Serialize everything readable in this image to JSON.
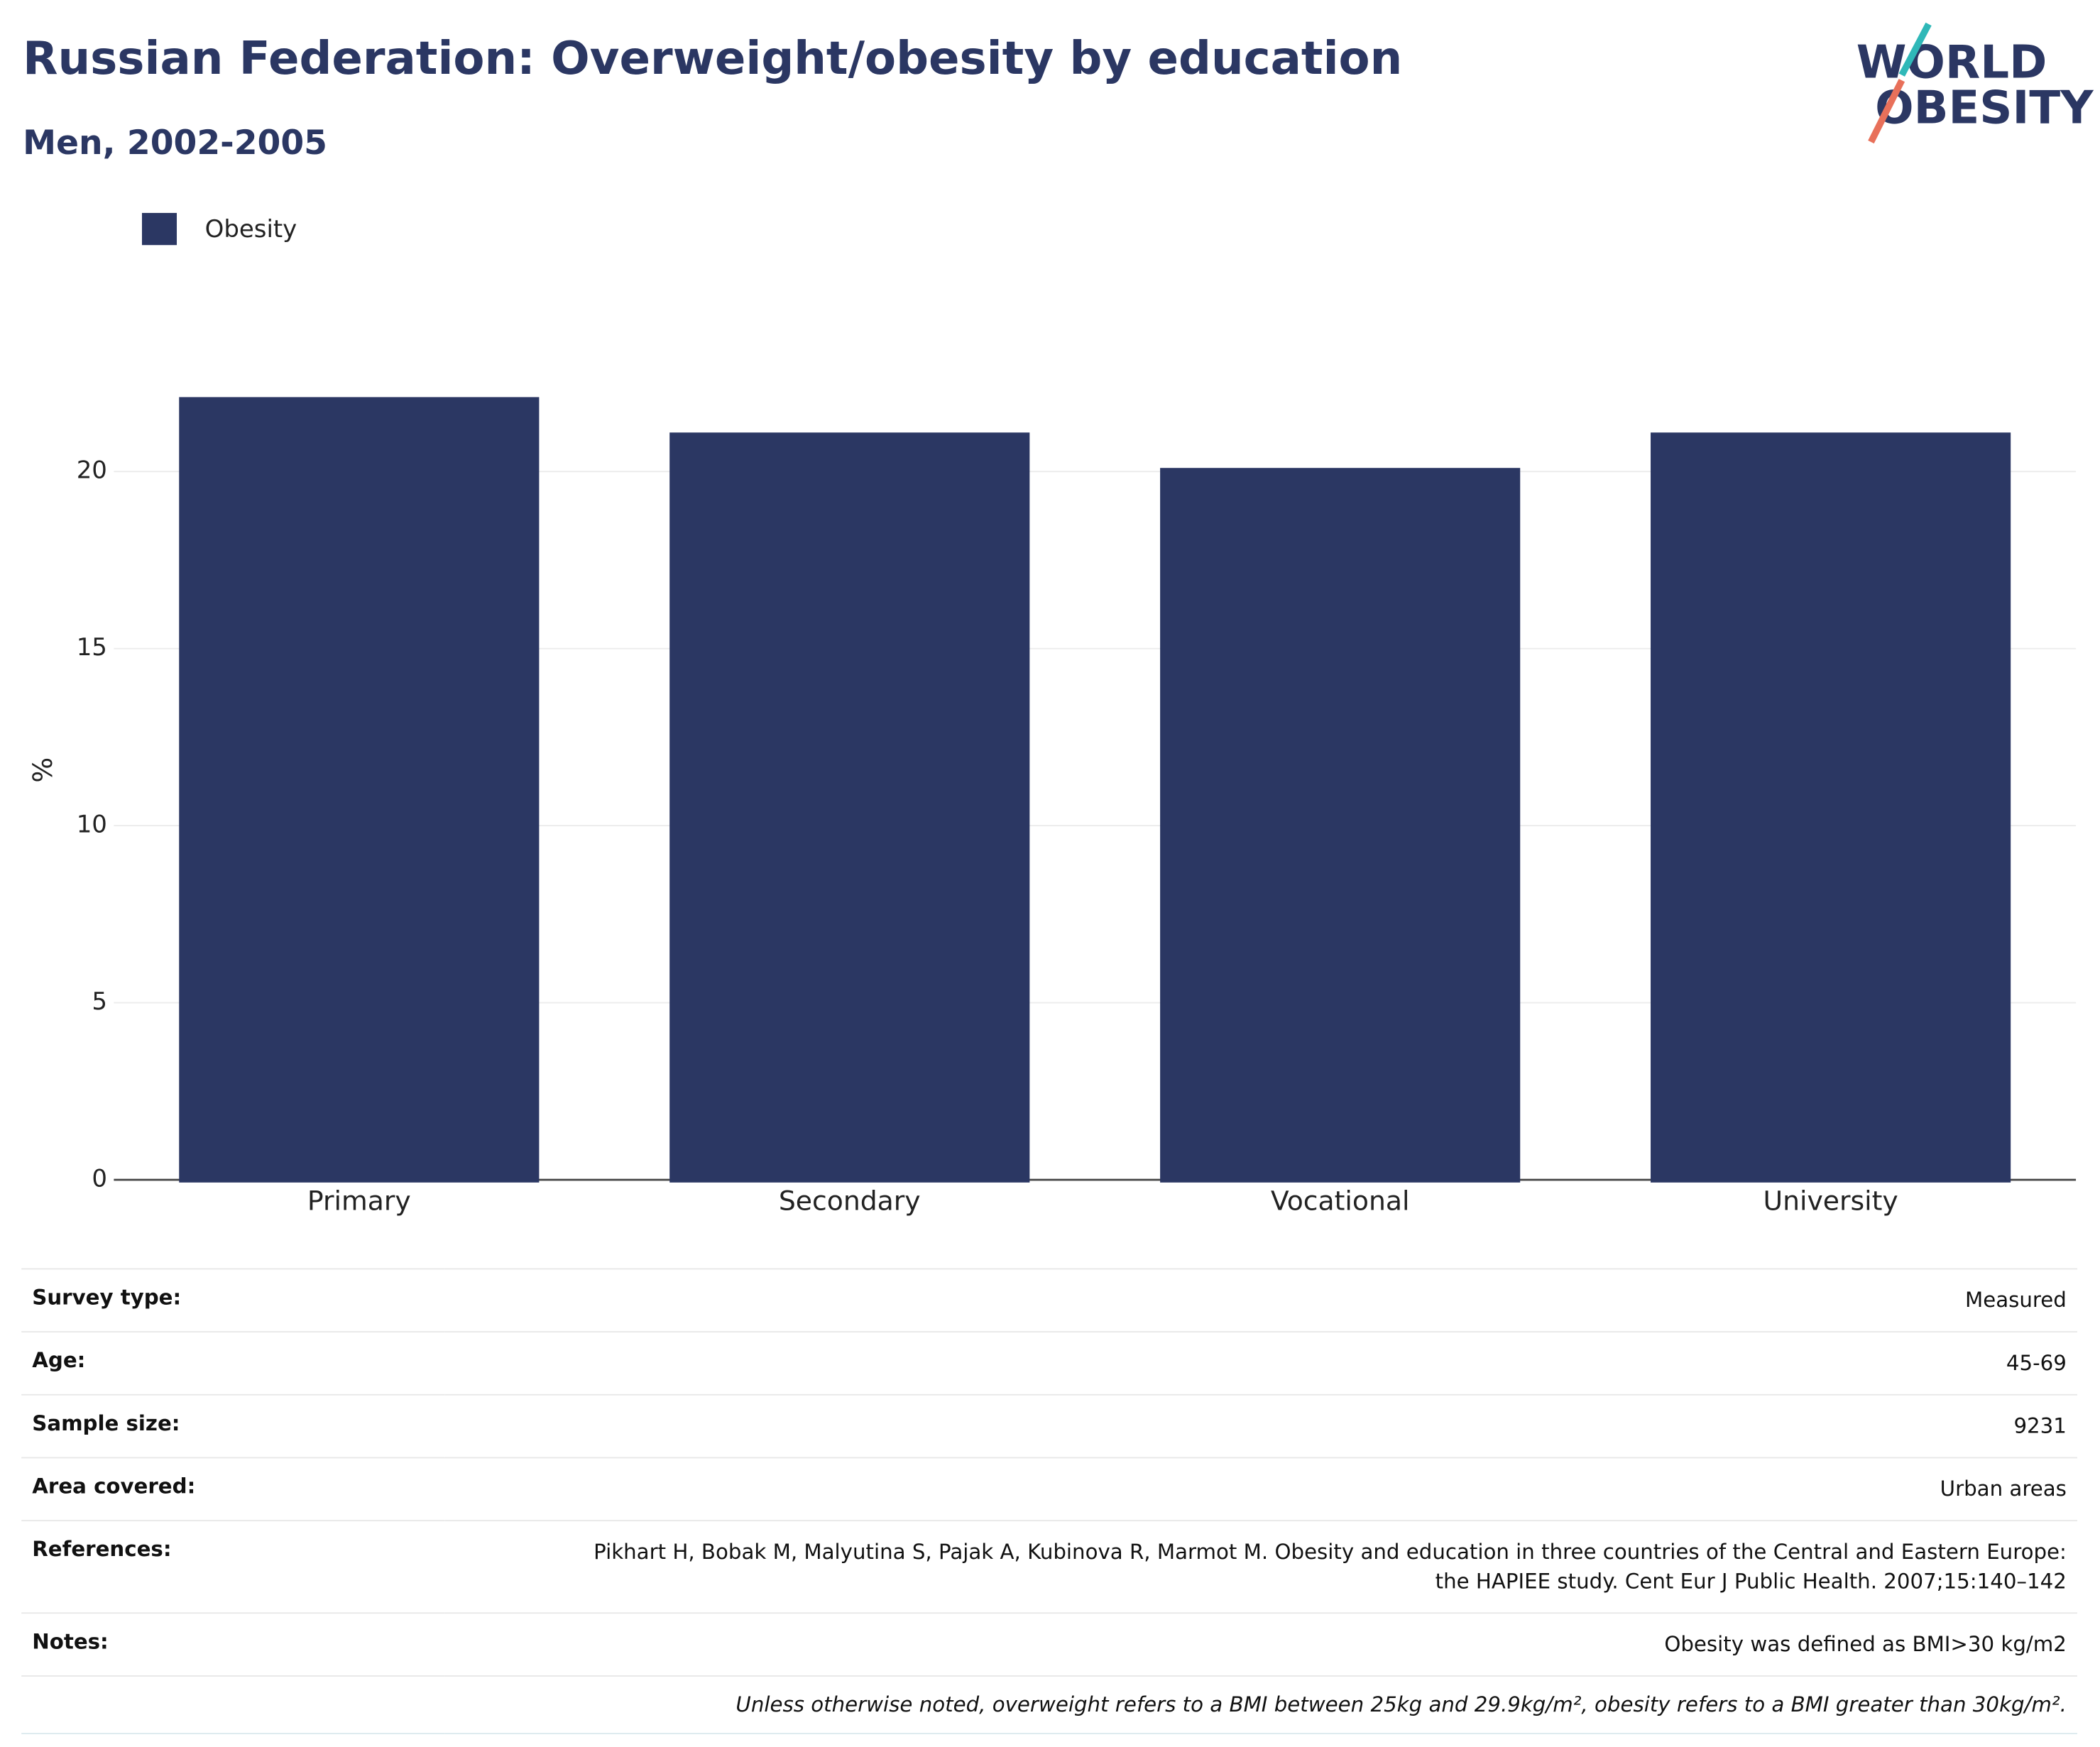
{
  "chart_data": {
    "type": "bar",
    "title": "Russian Federation: Overweight/obesity by education",
    "subtitle": "Men, 2002-2005",
    "y_label": "%",
    "categories": [
      "Primary",
      "Secondary",
      "Vocational",
      "University"
    ],
    "series": [
      {
        "name": "Obesity",
        "color": "#2b3763",
        "values": [
          22.1,
          21.1,
          20.1,
          21.1
        ]
      }
    ],
    "ylim": [
      0,
      24.2
    ],
    "yticks": [
      0,
      5,
      10,
      15,
      20
    ],
    "grid": true,
    "legend": "top-left"
  },
  "logo": {
    "lines": [
      "WORLD",
      "OBESITY"
    ]
  },
  "table": {
    "rows": [
      [
        "Survey type:",
        "Measured"
      ],
      [
        "Age:",
        "45-69"
      ],
      [
        "Sample size:",
        "9231"
      ],
      [
        "Area covered:",
        "Urban areas"
      ],
      [
        "References:",
        "Pikhart H, Bobak M, Malyutina S, Pajak A, Kubinova R, Marmot M. Obesity and education in three countries of the Central and Eastern Europe: the HAPIEE study. Cent Eur J Public Health. 2007;15:140–142"
      ],
      [
        "Notes:",
        "Obesity was defined as BMI>30 kg/m2"
      ]
    ],
    "footnote": "Unless otherwise noted, overweight refers to a BMI between 25kg and 29.9kg/m², obesity refers to a BMI greater than 30kg/m²."
  }
}
